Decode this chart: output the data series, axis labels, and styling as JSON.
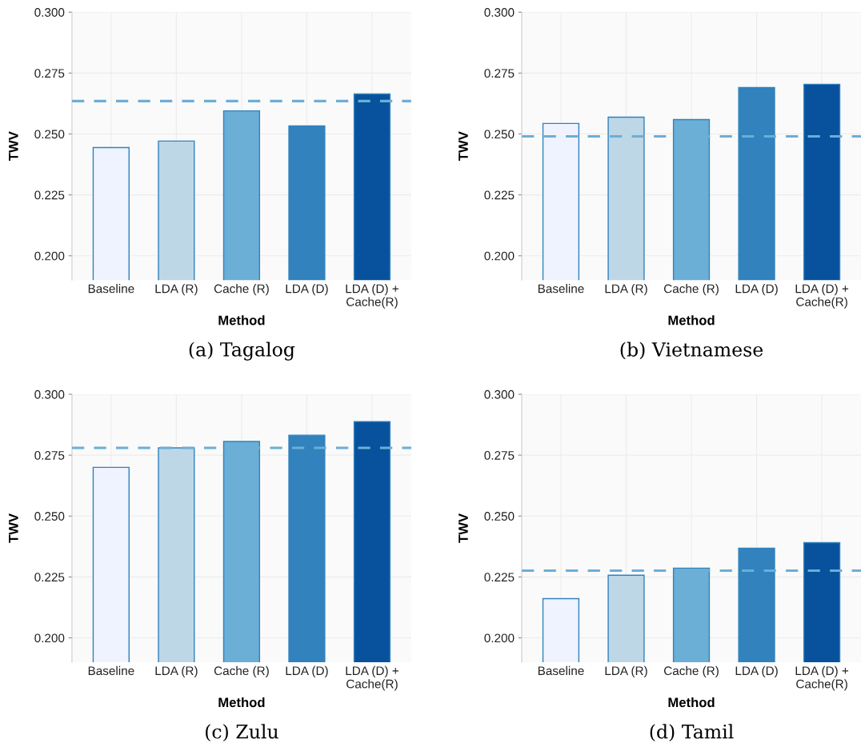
{
  "chart_data": [
    {
      "type": "bar",
      "xlabel": "Method",
      "ylabel": "TWV",
      "annotations": [
        "(a) Tagalog"
      ],
      "grid": true,
      "categories": [
        "Baseline",
        "LDA (R)",
        "Cache (R)",
        "LDA (D)",
        "LDA (D) +\nCache(R)"
      ],
      "values": [
        0.2444,
        0.2471,
        0.2595,
        0.2533,
        0.2664
      ],
      "colors": [
        "#eff3ff",
        "#bdd7e7",
        "#6baed6",
        "#3182bd",
        "#08519c"
      ],
      "ylim": [
        0.19,
        0.3
      ],
      "yticks": [
        {
          "value": 0.2,
          "label": "0.200"
        },
        {
          "value": 0.225,
          "label": "0.225"
        },
        {
          "value": 0.25,
          "label": "0.250"
        },
        {
          "value": 0.275,
          "label": "0.275"
        },
        {
          "value": 0.3,
          "label": "0.300"
        }
      ],
      "ref_lines": [
        {
          "axis": "y",
          "value": 0.2635,
          "color": "#6baed6",
          "line_style": "dashed"
        }
      ]
    },
    {
      "type": "bar",
      "xlabel": "Method",
      "ylabel": "TWV",
      "annotations": [
        "(b) Vietnamese"
      ],
      "grid": true,
      "categories": [
        "Baseline",
        "LDA (R)",
        "Cache (R)",
        "LDA (D)",
        "LDA (D) +\nCache(R)"
      ],
      "values": [
        0.2543,
        0.2569,
        0.2559,
        0.2691,
        0.2704
      ],
      "colors": [
        "#eff3ff",
        "#bdd7e7",
        "#6baed6",
        "#3182bd",
        "#08519c"
      ],
      "ylim": [
        0.19,
        0.3
      ],
      "yticks": [
        {
          "value": 0.2,
          "label": "0.200"
        },
        {
          "value": 0.225,
          "label": "0.225"
        },
        {
          "value": 0.25,
          "label": "0.250"
        },
        {
          "value": 0.275,
          "label": "0.275"
        },
        {
          "value": 0.3,
          "label": "0.300"
        }
      ],
      "ref_lines": [
        {
          "axis": "y",
          "value": 0.249,
          "color": "#6baed6",
          "line_style": "dashed"
        }
      ]
    },
    {
      "type": "bar",
      "xlabel": "Method",
      "ylabel": "TWV",
      "annotations": [
        "(c) Zulu"
      ],
      "grid": true,
      "categories": [
        "Baseline",
        "LDA (R)",
        "Cache (R)",
        "LDA (D)",
        "LDA (D) +\nCache(R)"
      ],
      "values": [
        0.27,
        0.278,
        0.2806,
        0.2832,
        0.2888
      ],
      "colors": [
        "#eff3ff",
        "#bdd7e7",
        "#6baed6",
        "#3182bd",
        "#08519c"
      ],
      "ylim": [
        0.19,
        0.3
      ],
      "yticks": [
        {
          "value": 0.2,
          "label": "0.200"
        },
        {
          "value": 0.225,
          "label": "0.225"
        },
        {
          "value": 0.25,
          "label": "0.250"
        },
        {
          "value": 0.275,
          "label": "0.275"
        },
        {
          "value": 0.3,
          "label": "0.300"
        }
      ],
      "ref_lines": [
        {
          "axis": "y",
          "value": 0.278,
          "color": "#6baed6",
          "line_style": "dashed"
        }
      ]
    },
    {
      "type": "bar",
      "xlabel": "Method",
      "ylabel": "TWV",
      "annotations": [
        "(d) Tamil"
      ],
      "grid": true,
      "categories": [
        "Baseline",
        "LDA (R)",
        "Cache (R)",
        "LDA (D)",
        "LDA (D) +\nCache(R)"
      ],
      "values": [
        0.2161,
        0.2257,
        0.2286,
        0.2368,
        0.2391
      ],
      "colors": [
        "#eff3ff",
        "#bdd7e7",
        "#6baed6",
        "#3182bd",
        "#08519c"
      ],
      "ylim": [
        0.19,
        0.3
      ],
      "yticks": [
        {
          "value": 0.2,
          "label": "0.200"
        },
        {
          "value": 0.225,
          "label": "0.225"
        },
        {
          "value": 0.25,
          "label": "0.250"
        },
        {
          "value": 0.275,
          "label": "0.275"
        },
        {
          "value": 0.3,
          "label": "0.300"
        }
      ],
      "ref_lines": [
        {
          "axis": "y",
          "value": 0.2276,
          "color": "#6baed6",
          "line_style": "dashed"
        }
      ]
    }
  ]
}
